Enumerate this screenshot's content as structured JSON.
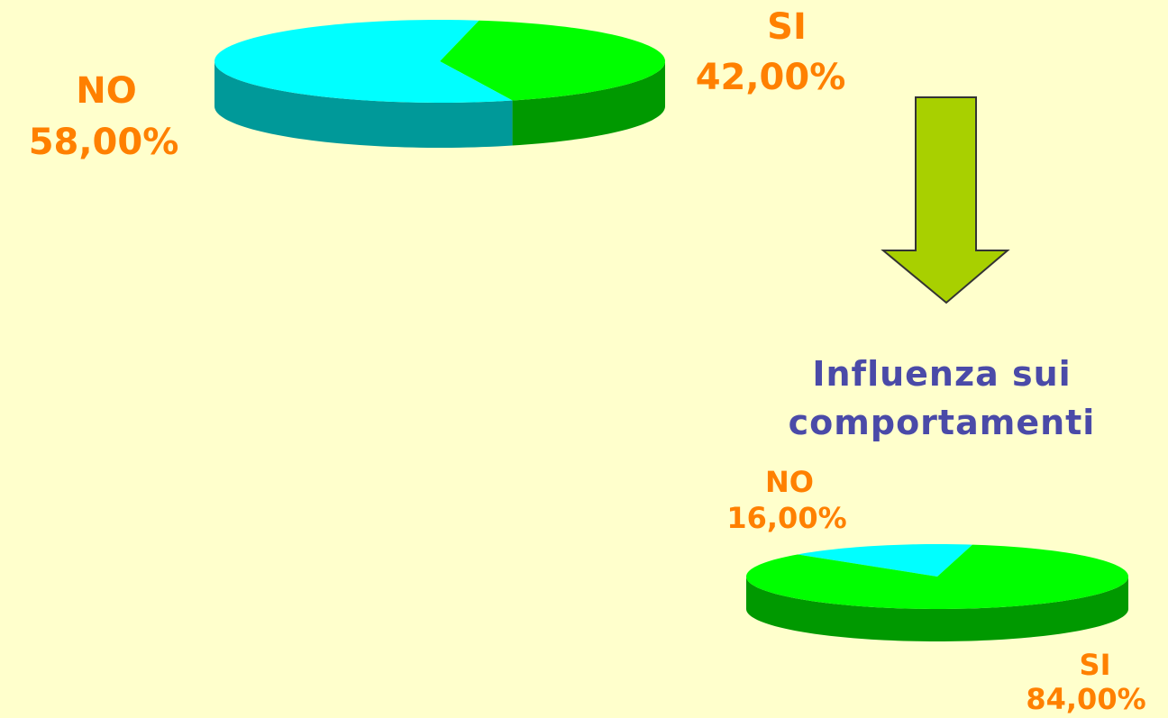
{
  "chart_data": [
    {
      "type": "pie",
      "categories": [
        "SI",
        "NO"
      ],
      "values": [
        42,
        58
      ],
      "value_labels": [
        "42,00%",
        "58,00%"
      ],
      "colors": [
        "#00ff00",
        "#00ffff"
      ]
    },
    {
      "type": "pie",
      "title": "Influenza sui comportamenti",
      "categories": [
        "NO",
        "SI"
      ],
      "values": [
        16,
        84
      ],
      "value_labels": [
        "16,00%",
        "84,00%"
      ],
      "colors": [
        "#00ffff",
        "#00ff00"
      ]
    }
  ]
}
